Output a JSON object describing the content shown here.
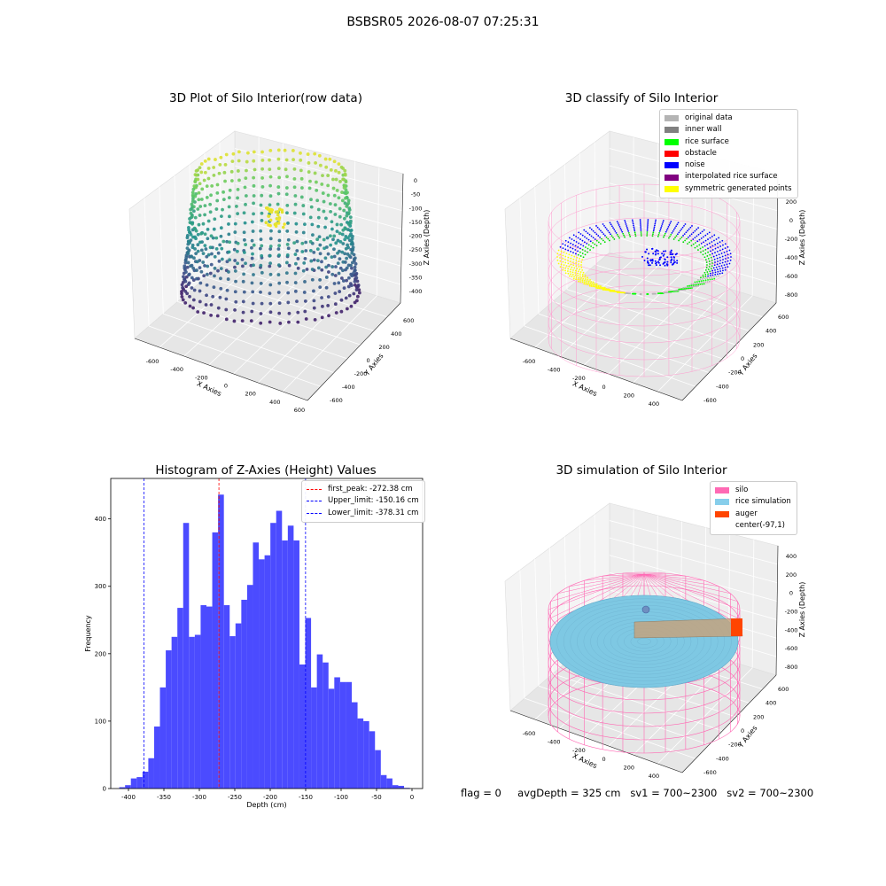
{
  "suptitle": "BSBSR05 2026-08-07 07:25:31",
  "footer": {
    "flag": "flag = 0",
    "avg_depth": "avgDepth = 325 cm",
    "sv1": "sv1 = 700~2300",
    "sv2": "sv2 = 700~2300"
  },
  "colors": {
    "hist_bar": "#4b4bff",
    "first_peak": "#ff0000",
    "limits": "#0000ff",
    "silo_wire": "#ff69b4",
    "rice": "#7ec8e3",
    "auger": "#ff4500"
  },
  "raw_plot": {
    "title": "3D Plot of Silo Interior(row data)",
    "xlabel": "X Axies",
    "ylabel": "Y Axies",
    "zlabel": "Z Axies (Depth)",
    "x_ticks": [
      "-600",
      "-400",
      "-200",
      "0",
      "200",
      "400",
      "600"
    ],
    "y_ticks": [
      "600",
      "400",
      "200",
      "0",
      "-200",
      "-400",
      "-600"
    ],
    "z_ticks": [
      "0",
      "-50",
      "-100",
      "-150",
      "-200",
      "-250",
      "-300",
      "-350",
      "-400"
    ],
    "colormap": "viridis"
  },
  "classify_plot": {
    "title": "3D classify of Silo Interior",
    "xlabel": "X Axies",
    "ylabel": "Y Axies",
    "zlabel": "Z Axies (Depth)",
    "x_ticks": [
      "-600",
      "-400",
      "-200",
      "0",
      "200",
      "400"
    ],
    "y_ticks": [
      "600",
      "400",
      "200",
      "0",
      "-200",
      "-400",
      "-600"
    ],
    "z_ticks": [
      "200",
      "0",
      "-200",
      "-400",
      "-600",
      "-800"
    ],
    "legend": [
      {
        "label": "original data",
        "color": "#b4b4b4"
      },
      {
        "label": "inner wall",
        "color": "#808080"
      },
      {
        "label": "rice surface",
        "color": "#00ff00"
      },
      {
        "label": "obstacle",
        "color": "#ff0000"
      },
      {
        "label": "noise",
        "color": "#0000ff"
      },
      {
        "label": "interpolated rice surface",
        "color": "#800080"
      },
      {
        "label": "symmetric generated points",
        "color": "#ffff00"
      }
    ]
  },
  "sim_plot": {
    "title": "3D simulation of Silo Interior",
    "xlabel": "X Axies",
    "ylabel": "Y Axies",
    "zlabel": "Z Axies (Depth)",
    "x_ticks": [
      "-600",
      "-400",
      "-200",
      "0",
      "200",
      "400"
    ],
    "y_ticks": [
      "600",
      "400",
      "200",
      "0",
      "-200",
      "-400",
      "-600"
    ],
    "z_ticks": [
      "400",
      "200",
      "0",
      "-200",
      "-400",
      "-600",
      "-800"
    ],
    "legend": [
      {
        "label": "silo",
        "color": "#ff69b4"
      },
      {
        "label": "rice simulation",
        "color": "#87ceeb"
      },
      {
        "label": "auger",
        "color": "#ff4500"
      },
      {
        "label": "center(-97,1)",
        "color": "#ffffff"
      }
    ]
  },
  "chart_data": {
    "type": "bar",
    "title": "Histogram of Z-Axies (Height) Values",
    "xlabel": "Depth (cm)",
    "ylabel": "Frequency",
    "xlim": [
      -425,
      15
    ],
    "ylim": [
      0,
      460
    ],
    "x_ticks": [
      -400,
      -350,
      -300,
      -250,
      -200,
      -150,
      -100,
      -50,
      0
    ],
    "y_ticks": [
      0,
      100,
      200,
      300,
      400
    ],
    "bin_width": 8.2,
    "bin_start": -413,
    "values": [
      2,
      5,
      15,
      17,
      25,
      45,
      92,
      150,
      205,
      225,
      268,
      394,
      225,
      228,
      272,
      270,
      380,
      436,
      272,
      226,
      245,
      280,
      302,
      365,
      340,
      346,
      394,
      412,
      368,
      390,
      368,
      184,
      253,
      150,
      199,
      187,
      148,
      165,
      158,
      158,
      128,
      104,
      100,
      85,
      57,
      20,
      15,
      5,
      4,
      1
    ],
    "vlines": [
      {
        "name": "first_peak: -272.38 cm",
        "x": -272.38,
        "color": "#ff0000"
      },
      {
        "name": "Upper_limit: -150.16 cm",
        "x": -150.16,
        "color": "#0000ff"
      },
      {
        "name": "Lower_limit: -378.31 cm",
        "x": -378.31,
        "color": "#0000ff"
      }
    ],
    "legend_position": "top-right",
    "grid": false
  }
}
